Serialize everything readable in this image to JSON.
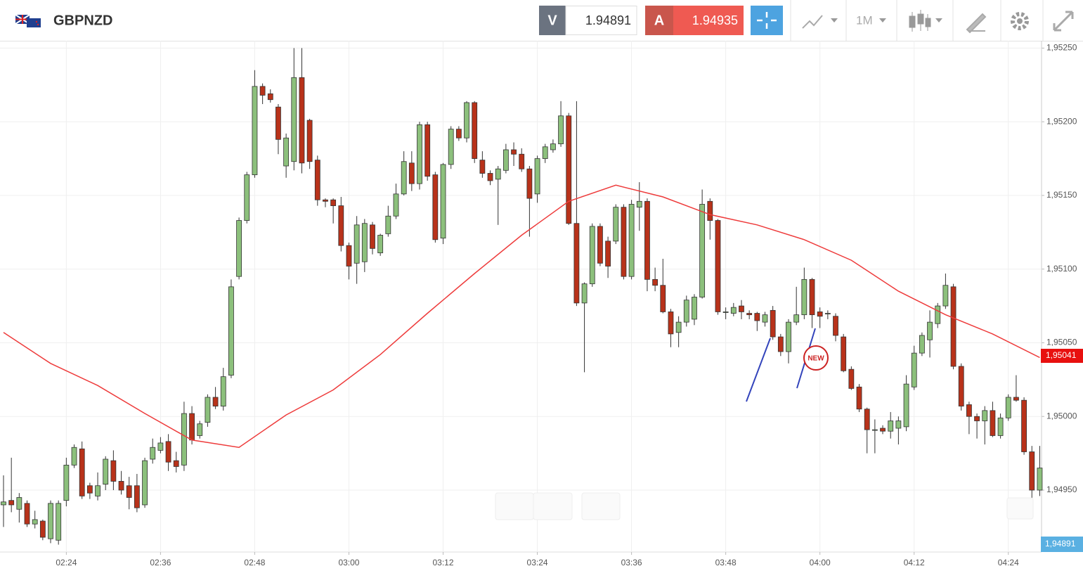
{
  "toolbar": {
    "symbol": "GBPNZD",
    "sell_label": "V",
    "sell_price": "1.94891",
    "buy_label": "A",
    "buy_price": "1.94935",
    "timeframe": "1M"
  },
  "price_tags": [
    "1,95041",
    "1,94891"
  ],
  "badge": "NEW",
  "chart_data": {
    "type": "candlestick",
    "x": [
      "02:16",
      "02:17",
      "02:18",
      "02:19",
      "02:20",
      "02:21",
      "02:22",
      "02:23",
      "02:24",
      "02:25",
      "02:26",
      "02:27",
      "02:28",
      "02:29",
      "02:30",
      "02:31",
      "02:32",
      "02:33",
      "02:34",
      "02:35",
      "02:36",
      "02:37",
      "02:38",
      "02:39",
      "02:40",
      "02:41",
      "02:42",
      "02:43",
      "02:44",
      "02:45",
      "02:46",
      "02:47",
      "02:48",
      "02:49",
      "02:50",
      "02:51",
      "02:52",
      "02:53",
      "02:54",
      "02:55",
      "02:56",
      "02:57",
      "02:58",
      "02:59",
      "03:00",
      "03:01",
      "03:02",
      "03:03",
      "03:04",
      "03:05",
      "03:06",
      "03:07",
      "03:08",
      "03:09",
      "03:10",
      "03:11",
      "03:12",
      "03:13",
      "03:14",
      "03:15",
      "03:16",
      "03:17",
      "03:18",
      "03:19",
      "03:20",
      "03:21",
      "03:22",
      "03:23",
      "03:24",
      "03:25",
      "03:26",
      "03:27",
      "03:28",
      "03:29",
      "03:30",
      "03:31",
      "03:32",
      "03:33",
      "03:34",
      "03:35",
      "03:36",
      "03:37",
      "03:38",
      "03:39",
      "03:40",
      "03:41",
      "03:42",
      "03:43",
      "03:44",
      "03:45",
      "03:46",
      "03:47",
      "03:48",
      "03:49",
      "03:50",
      "03:51",
      "03:52",
      "03:53",
      "03:54",
      "03:55",
      "03:56",
      "03:57",
      "03:58",
      "03:59",
      "04:00",
      "04:01",
      "04:02",
      "04:03",
      "04:04",
      "04:05",
      "04:06",
      "04:07",
      "04:08",
      "04:09",
      "04:10",
      "04:11",
      "04:12",
      "04:13",
      "04:14",
      "04:15",
      "04:16",
      "04:17",
      "04:18",
      "04:19",
      "04:20",
      "04:21",
      "04:22",
      "04:23",
      "04:24",
      "04:25",
      "04:26",
      "04:27",
      "04:28"
    ],
    "open": [
      1.9494,
      1.94943,
      1.94937,
      1.94941,
      1.94927,
      1.94929,
      1.94917,
      1.94916,
      1.94943,
      1.94967,
      1.94978,
      1.94953,
      1.94946,
      1.94954,
      1.9497,
      1.94956,
      1.94953,
      1.94953,
      1.9494,
      1.94971,
      1.94977,
      1.94983,
      1.9497,
      1.94967,
      1.95002,
      1.94987,
      1.94996,
      1.95013,
      1.95007,
      1.95028,
      1.95095,
      1.95133,
      1.95164,
      1.95224,
      1.95219,
      1.9521,
      1.9517,
      1.95173,
      1.9523,
      1.95201,
      1.95174,
      1.95147,
      1.95147,
      1.95143,
      1.95116,
      1.95104,
      1.95105,
      1.9513,
      1.95111,
      1.95124,
      1.95136,
      1.95151,
      1.95172,
      1.95158,
      1.95198,
      1.95164,
      1.95121,
      1.95171,
      1.95195,
      1.95189,
      1.95213,
      1.95174,
      1.95165,
      1.95161,
      1.95167,
      1.95181,
      1.95178,
      1.95168,
      1.95151,
      1.95175,
      1.95181,
      1.95185,
      1.95204,
      1.95131,
      1.95077,
      1.9509,
      1.95129,
      1.95119,
      1.95119,
      1.95142,
      1.95095,
      1.95142,
      1.95146,
      1.95093,
      1.95089,
      1.95071,
      1.95057,
      1.95064,
      1.95066,
      1.95081,
      1.95146,
      1.95133,
      1.95071,
      1.9507,
      1.95075,
      1.9507,
      1.9507,
      1.95064,
      1.95072,
      1.95054,
      1.95044,
      1.95064,
      1.95069,
      1.95093,
      1.95071,
      1.9507,
      1.95068,
      1.95054,
      1.95032,
      1.9502,
      1.95005,
      1.94991,
      1.94992,
      1.9499,
      1.94992,
      1.94993,
      1.9502,
      1.95043,
      1.95052,
      1.95063,
      1.95075,
      1.95088,
      1.95034,
      1.95008,
      1.95,
      1.94997,
      1.95004,
      1.94987,
      1.94999,
      1.95013,
      1.95011,
      1.94976,
      1.9495
    ],
    "high": [
      1.9496,
      1.94972,
      1.94948,
      1.94943,
      1.94936,
      1.9493,
      1.94943,
      1.94943,
      1.94972,
      1.94981,
      1.94983,
      1.94955,
      1.94962,
      1.94973,
      1.94977,
      1.94963,
      1.94959,
      1.94961,
      1.94972,
      1.94985,
      1.94986,
      1.94988,
      1.94976,
      1.9501,
      1.95007,
      1.94997,
      1.95015,
      1.9502,
      1.95033,
      1.95093,
      1.95135,
      1.95166,
      1.95235,
      1.95226,
      1.95222,
      1.95212,
      1.95192,
      1.9525,
      1.9525,
      1.95202,
      1.95177,
      1.95148,
      1.95148,
      1.95149,
      1.95118,
      1.95136,
      1.95134,
      1.95132,
      1.95124,
      1.95143,
      1.95158,
      1.9518,
      1.9518,
      1.952,
      1.952,
      1.95166,
      1.95172,
      1.95197,
      1.95197,
      1.95214,
      1.95214,
      1.9518,
      1.95167,
      1.9517,
      1.95185,
      1.95186,
      1.95182,
      1.9517,
      1.95177,
      1.95185,
      1.95188,
      1.95214,
      1.95206,
      1.95214,
      1.95091,
      1.95131,
      1.95131,
      1.95122,
      1.95144,
      1.95144,
      1.95147,
      1.95159,
      1.95148,
      1.95101,
      1.95107,
      1.95073,
      1.95068,
      1.95082,
      1.95083,
      1.95154,
      1.95148,
      1.95134,
      1.95074,
      1.95077,
      1.95079,
      1.95072,
      1.95071,
      1.95071,
      1.95075,
      1.95056,
      1.95066,
      1.95088,
      1.95101,
      1.95094,
      1.95074,
      1.95072,
      1.9507,
      1.95056,
      1.95034,
      1.95022,
      1.95006,
      1.94998,
      1.94994,
      1.95003,
      1.95,
      1.95028,
      1.95048,
      1.95057,
      1.95072,
      1.95077,
      1.95097,
      1.9509,
      1.95036,
      1.9501,
      1.95002,
      1.95007,
      1.9501,
      1.95002,
      1.95015,
      1.95028,
      1.95013,
      1.9498,
      1.9498
    ],
    "low": [
      1.94925,
      1.94935,
      1.94928,
      1.94925,
      1.94924,
      1.94916,
      1.94914,
      1.94913,
      1.94939,
      1.94965,
      1.94944,
      1.94944,
      1.94943,
      1.9495,
      1.9495,
      1.94947,
      1.94937,
      1.94935,
      1.94938,
      1.94968,
      1.94975,
      1.94963,
      1.94962,
      1.94963,
      1.94981,
      1.94985,
      1.94993,
      1.95005,
      1.95004,
      1.95026,
      1.95093,
      1.95131,
      1.95162,
      1.95212,
      1.95213,
      1.95178,
      1.95162,
      1.95167,
      1.95165,
      1.95168,
      1.95143,
      1.95142,
      1.95131,
      1.95112,
      1.95093,
      1.9509,
      1.95098,
      1.9511,
      1.95109,
      1.95122,
      1.95134,
      1.9515,
      1.95153,
      1.95154,
      1.9516,
      1.95118,
      1.95117,
      1.95168,
      1.95187,
      1.95186,
      1.95172,
      1.95162,
      1.95157,
      1.9513,
      1.95165,
      1.9517,
      1.95166,
      1.95122,
      1.95145,
      1.95172,
      1.95179,
      1.95183,
      1.9513,
      1.95075,
      1.9503,
      1.95088,
      1.95102,
      1.95094,
      1.95117,
      1.95093,
      1.95093,
      1.95126,
      1.95085,
      1.95085,
      1.9507,
      1.95047,
      1.95047,
      1.95061,
      1.95062,
      1.9508,
      1.9512,
      1.95069,
      1.95066,
      1.95068,
      1.95066,
      1.95066,
      1.95058,
      1.95061,
      1.95052,
      1.95041,
      1.95036,
      1.95062,
      1.95066,
      1.9506,
      1.9506,
      1.95066,
      1.95051,
      1.9503,
      1.95018,
      1.95003,
      1.94975,
      1.94975,
      1.94988,
      1.94985,
      1.94981,
      1.9499,
      1.95018,
      1.95041,
      1.9504,
      1.9506,
      1.95073,
      1.95032,
      1.95004,
      1.94988,
      1.94985,
      1.94981,
      1.94986,
      1.94985,
      1.94997,
      1.9501,
      1.94974,
      1.94944,
      1.94946
    ],
    "close": [
      1.94942,
      1.9494,
      1.94945,
      1.94927,
      1.9493,
      1.94918,
      1.94941,
      1.94941,
      1.94967,
      1.94979,
      1.94946,
      1.94948,
      1.94953,
      1.94971,
      1.94956,
      1.9495,
      1.94945,
      1.94938,
      1.9497,
      1.94979,
      1.94982,
      1.94969,
      1.94966,
      1.95002,
      1.94984,
      1.94995,
      1.95013,
      1.95007,
      1.95027,
      1.95088,
      1.95133,
      1.95164,
      1.95224,
      1.95218,
      1.95215,
      1.95188,
      1.95189,
      1.9523,
      1.95172,
      1.95173,
      1.95147,
      1.95146,
      1.95143,
      1.95116,
      1.95102,
      1.9513,
      1.95131,
      1.95114,
      1.95123,
      1.95136,
      1.95151,
      1.95173,
      1.95158,
      1.95198,
      1.95163,
      1.9512,
      1.95171,
      1.95195,
      1.95189,
      1.95213,
      1.95175,
      1.95165,
      1.9516,
      1.95168,
      1.95181,
      1.95178,
      1.95168,
      1.95148,
      1.95175,
      1.95183,
      1.95185,
      1.95204,
      1.95131,
      1.95077,
      1.9509,
      1.95129,
      1.95104,
      1.95102,
      1.95142,
      1.95095,
      1.95144,
      1.95146,
      1.95093,
      1.95089,
      1.95071,
      1.95056,
      1.95064,
      1.95079,
      1.95081,
      1.95144,
      1.95133,
      1.95071,
      1.95071,
      1.95074,
      1.95071,
      1.95069,
      1.95065,
      1.95069,
      1.95054,
      1.95044,
      1.95064,
      1.95069,
      1.95093,
      1.95069,
      1.95068,
      1.9507,
      1.95055,
      1.95031,
      1.95019,
      1.95005,
      1.94991,
      1.94991,
      1.9499,
      1.94997,
      1.94997,
      1.95022,
      1.95043,
      1.95055,
      1.95064,
      1.95075,
      1.95089,
      1.95034,
      1.95007,
      1.95,
      1.94997,
      1.95004,
      1.94987,
      1.94999,
      1.95013,
      1.95011,
      1.94976,
      1.9495,
      1.94965
    ],
    "up_color": "#8cc07c",
    "down_color": "#b8321a",
    "moving_average": {
      "color": "#ee3b3b",
      "x": [
        "02:16",
        "02:22",
        "02:28",
        "02:34",
        "02:40",
        "02:46",
        "02:52",
        "02:58",
        "03:04",
        "03:10",
        "03:16",
        "03:22",
        "03:28",
        "03:34",
        "03:40",
        "03:46",
        "03:52",
        "03:58",
        "04:04",
        "04:10",
        "04:16",
        "04:22",
        "04:28"
      ],
      "values": [
        1.95057,
        1.95036,
        1.95021,
        1.95002,
        1.94984,
        1.94979,
        1.95001,
        1.95018,
        1.95042,
        1.9507,
        1.95097,
        1.95123,
        1.95146,
        1.95157,
        1.95149,
        1.95137,
        1.9513,
        1.9512,
        1.95106,
        1.95085,
        1.95069,
        1.95056,
        1.9504
      ]
    },
    "ylim": [
      1.94908,
      1.95254
    ],
    "yticks": [
      {
        "value": 1.9495,
        "label": "1,94950"
      },
      {
        "value": 1.95,
        "label": "1,95000"
      },
      {
        "value": 1.9505,
        "label": "1,95050"
      },
      {
        "value": 1.951,
        "label": "1,95100"
      },
      {
        "value": 1.9515,
        "label": "1,95150"
      },
      {
        "value": 1.952,
        "label": "1,95200"
      },
      {
        "value": 1.9525,
        "label": "1,95250"
      }
    ],
    "xticks": [
      "02:24",
      "02:36",
      "02:48",
      "03:00",
      "03:12",
      "03:24",
      "03:36",
      "03:48",
      "04:00",
      "04:12",
      "04:24"
    ],
    "grid": true
  }
}
